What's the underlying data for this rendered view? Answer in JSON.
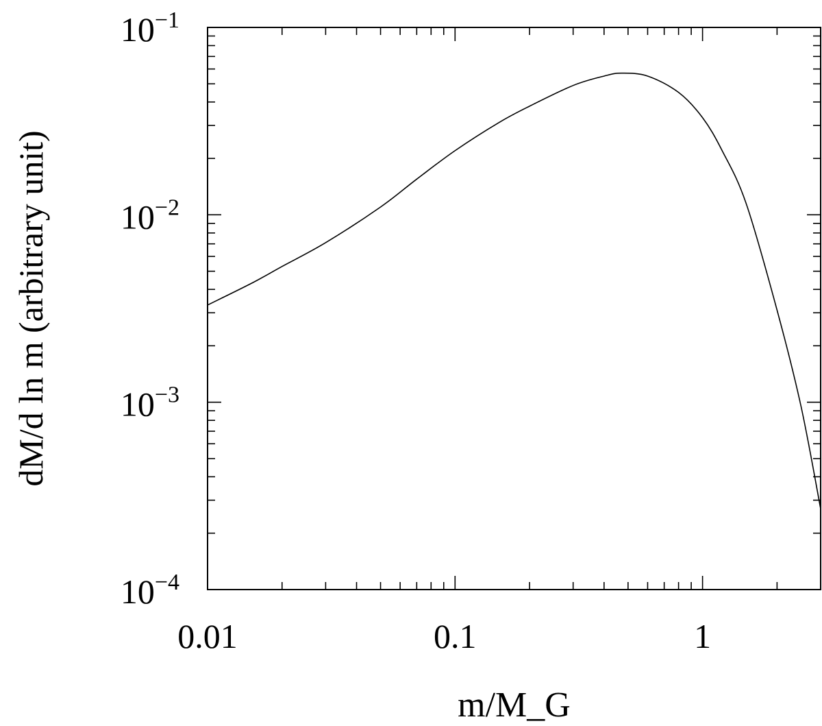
{
  "chart_data": {
    "type": "line",
    "title": "",
    "xlabel": "m/M_G",
    "ylabel": "dM/d ln m (arbitrary unit)",
    "xscale": "log",
    "yscale": "log",
    "xlim": [
      0.01,
      3.0
    ],
    "ylim": [
      0.0001,
      0.1
    ],
    "grid": false,
    "legend": "none",
    "x_ticks": [
      0.01,
      0.1,
      1
    ],
    "x_tick_labels": [
      "0.01",
      "0.1",
      "1"
    ],
    "y_ticks": [
      0.0001,
      0.001,
      0.01,
      0.1
    ],
    "y_tick_labels": [
      {
        "base": "10",
        "exp": "−4"
      },
      {
        "base": "10",
        "exp": "−3"
      },
      {
        "base": "10",
        "exp": "−2"
      },
      {
        "base": "10",
        "exp": "−1"
      }
    ],
    "series": [
      {
        "color": "#000000",
        "x": [
          0.01,
          0.015,
          0.02,
          0.03,
          0.05,
          0.07,
          0.1,
          0.15,
          0.2,
          0.3,
          0.4,
          0.47,
          0.6,
          0.8,
          1.0,
          1.2,
          1.5,
          2.0,
          2.5,
          3.0
        ],
        "y": [
          0.0033,
          0.0043,
          0.0053,
          0.0071,
          0.011,
          0.0155,
          0.022,
          0.031,
          0.038,
          0.049,
          0.055,
          0.057,
          0.055,
          0.045,
          0.033,
          0.022,
          0.0115,
          0.0031,
          0.00095,
          0.00027
        ]
      }
    ]
  }
}
